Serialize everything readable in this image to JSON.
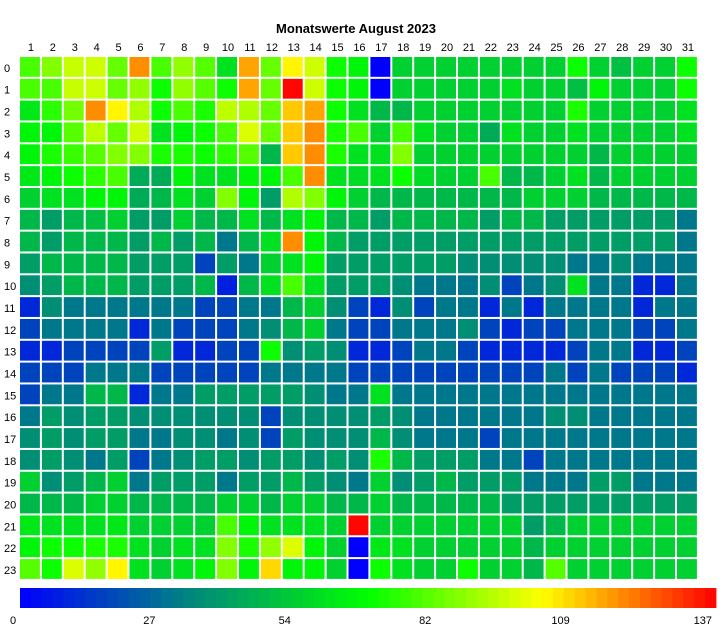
{
  "chart_data": {
    "type": "heatmap",
    "title": "Monatswerte August 2023",
    "x_labels": [
      "1",
      "2",
      "3",
      "4",
      "5",
      "6",
      "7",
      "8",
      "9",
      "10",
      "11",
      "12",
      "13",
      "14",
      "15",
      "16",
      "17",
      "18",
      "19",
      "20",
      "21",
      "22",
      "23",
      "24",
      "25",
      "26",
      "27",
      "28",
      "29",
      "30",
      "31"
    ],
    "y_labels": [
      "0",
      "1",
      "2",
      "3",
      "4",
      "5",
      "6",
      "7",
      "8",
      "9",
      "10",
      "11",
      "12",
      "13",
      "14",
      "15",
      "16",
      "17",
      "18",
      "19",
      "20",
      "21",
      "22",
      "23"
    ],
    "scale": {
      "min": 0,
      "max": 137,
      "ticks": [
        0,
        27,
        54,
        82,
        109,
        137
      ]
    },
    "colorscale": [
      "#0000ff",
      "#00897b",
      "#00ff00",
      "#ffff00",
      "#ff0000"
    ],
    "values": [
      [
        78,
        86,
        95,
        96,
        82,
        118,
        78,
        88,
        80,
        60,
        115,
        82,
        104,
        96,
        70,
        66,
        0,
        55,
        55,
        55,
        55,
        55,
        55,
        55,
        55,
        70,
        55,
        50,
        55,
        55,
        70
      ],
      [
        78,
        78,
        95,
        96,
        82,
        88,
        70,
        88,
        80,
        70,
        115,
        82,
        136,
        96,
        70,
        66,
        0,
        55,
        55,
        55,
        55,
        55,
        60,
        55,
        55,
        50,
        66,
        55,
        55,
        55,
        70
      ],
      [
        62,
        74,
        84,
        118,
        104,
        92,
        70,
        78,
        72,
        94,
        92,
        82,
        110,
        115,
        70,
        60,
        48,
        48,
        55,
        55,
        55,
        55,
        55,
        55,
        55,
        72,
        55,
        55,
        55,
        55,
        60
      ],
      [
        66,
        66,
        80,
        94,
        82,
        96,
        60,
        66,
        70,
        78,
        98,
        82,
        110,
        118,
        72,
        78,
        55,
        78,
        60,
        55,
        55,
        44,
        60,
        55,
        55,
        60,
        55,
        55,
        55,
        55,
        60
      ],
      [
        66,
        72,
        76,
        80,
        86,
        86,
        72,
        72,
        70,
        74,
        80,
        48,
        110,
        118,
        72,
        60,
        60,
        86,
        55,
        55,
        55,
        55,
        55,
        55,
        55,
        55,
        48,
        55,
        55,
        55,
        55
      ],
      [
        62,
        66,
        70,
        74,
        78,
        44,
        44,
        66,
        60,
        60,
        66,
        66,
        78,
        118,
        60,
        58,
        60,
        70,
        58,
        55,
        55,
        78,
        48,
        48,
        55,
        60,
        48,
        55,
        55,
        55,
        55
      ],
      [
        55,
        60,
        60,
        66,
        66,
        44,
        48,
        60,
        55,
        86,
        66,
        40,
        92,
        86,
        66,
        55,
        48,
        48,
        48,
        48,
        48,
        48,
        48,
        55,
        55,
        55,
        48,
        48,
        48,
        48,
        48
      ],
      [
        48,
        40,
        48,
        50,
        55,
        40,
        40,
        55,
        48,
        48,
        60,
        48,
        60,
        66,
        48,
        48,
        40,
        48,
        48,
        48,
        48,
        40,
        48,
        48,
        40,
        40,
        40,
        40,
        40,
        40,
        30
      ],
      [
        48,
        40,
        48,
        48,
        48,
        40,
        48,
        40,
        48,
        30,
        48,
        60,
        118,
        66,
        48,
        40,
        40,
        40,
        40,
        40,
        40,
        40,
        40,
        40,
        40,
        40,
        40,
        40,
        40,
        40,
        30
      ],
      [
        40,
        48,
        48,
        48,
        48,
        40,
        40,
        40,
        17,
        40,
        30,
        55,
        60,
        66,
        40,
        40,
        40,
        40,
        40,
        40,
        36,
        36,
        36,
        36,
        36,
        30,
        30,
        36,
        30,
        30,
        30
      ],
      [
        36,
        40,
        48,
        48,
        48,
        40,
        40,
        40,
        48,
        8,
        48,
        60,
        78,
        60,
        40,
        40,
        40,
        36,
        30,
        30,
        30,
        36,
        17,
        30,
        36,
        60,
        30,
        30,
        10,
        10,
        30
      ],
      [
        10,
        36,
        30,
        30,
        30,
        30,
        30,
        30,
        17,
        17,
        30,
        30,
        48,
        55,
        36,
        17,
        10,
        36,
        17,
        30,
        30,
        10,
        30,
        10,
        30,
        30,
        30,
        30,
        10,
        30,
        30
      ],
      [
        17,
        30,
        30,
        30,
        30,
        10,
        30,
        17,
        17,
        17,
        30,
        36,
        48,
        55,
        30,
        17,
        17,
        30,
        30,
        30,
        36,
        17,
        10,
        17,
        17,
        30,
        30,
        30,
        17,
        17,
        30
      ],
      [
        10,
        10,
        17,
        17,
        17,
        17,
        40,
        10,
        10,
        17,
        17,
        70,
        36,
        40,
        36,
        10,
        10,
        17,
        30,
        30,
        17,
        10,
        10,
        10,
        10,
        17,
        30,
        30,
        10,
        10,
        17
      ],
      [
        17,
        17,
        17,
        30,
        30,
        30,
        17,
        17,
        17,
        17,
        17,
        30,
        30,
        30,
        30,
        17,
        17,
        17,
        17,
        17,
        17,
        17,
        17,
        17,
        30,
        17,
        30,
        17,
        17,
        17,
        10
      ],
      [
        17,
        30,
        30,
        48,
        48,
        10,
        30,
        30,
        40,
        40,
        40,
        40,
        40,
        36,
        30,
        30,
        60,
        30,
        30,
        30,
        30,
        30,
        30,
        30,
        30,
        30,
        30,
        30,
        30,
        30,
        30
      ],
      [
        30,
        40,
        36,
        40,
        40,
        36,
        36,
        36,
        36,
        36,
        36,
        17,
        36,
        36,
        36,
        36,
        40,
        36,
        30,
        30,
        30,
        30,
        30,
        30,
        36,
        36,
        30,
        30,
        30,
        30,
        30
      ],
      [
        36,
        40,
        36,
        40,
        40,
        30,
        30,
        36,
        36,
        30,
        36,
        17,
        40,
        36,
        36,
        36,
        48,
        36,
        30,
        30,
        30,
        17,
        30,
        30,
        30,
        30,
        30,
        30,
        30,
        30,
        30
      ],
      [
        36,
        40,
        36,
        30,
        40,
        17,
        30,
        36,
        40,
        40,
        36,
        40,
        40,
        36,
        40,
        36,
        72,
        48,
        40,
        40,
        40,
        30,
        30,
        17,
        30,
        30,
        30,
        30,
        30,
        30,
        30
      ],
      [
        55,
        36,
        40,
        48,
        55,
        30,
        40,
        40,
        40,
        30,
        40,
        40,
        48,
        40,
        36,
        30,
        55,
        36,
        40,
        48,
        40,
        40,
        40,
        30,
        30,
        30,
        40,
        40,
        30,
        30,
        30
      ],
      [
        48,
        48,
        48,
        55,
        55,
        48,
        48,
        48,
        48,
        55,
        55,
        48,
        55,
        55,
        48,
        48,
        55,
        48,
        48,
        48,
        48,
        48,
        40,
        40,
        40,
        40,
        40,
        40,
        40,
        40,
        40
      ],
      [
        62,
        60,
        60,
        60,
        62,
        55,
        55,
        55,
        55,
        78,
        66,
        60,
        60,
        60,
        55,
        136,
        55,
        55,
        55,
        55,
        55,
        55,
        55,
        40,
        48,
        55,
        55,
        55,
        55,
        55,
        55
      ],
      [
        66,
        70,
        70,
        72,
        72,
        60,
        55,
        60,
        60,
        86,
        72,
        88,
        98,
        66,
        55,
        0,
        62,
        60,
        55,
        55,
        55,
        55,
        55,
        48,
        55,
        55,
        55,
        55,
        55,
        55,
        55
      ],
      [
        80,
        70,
        98,
        88,
        104,
        60,
        55,
        60,
        66,
        86,
        66,
        108,
        66,
        66,
        55,
        0,
        70,
        60,
        55,
        55,
        70,
        55,
        55,
        48,
        80,
        55,
        55,
        55,
        55,
        55,
        55
      ]
    ]
  }
}
